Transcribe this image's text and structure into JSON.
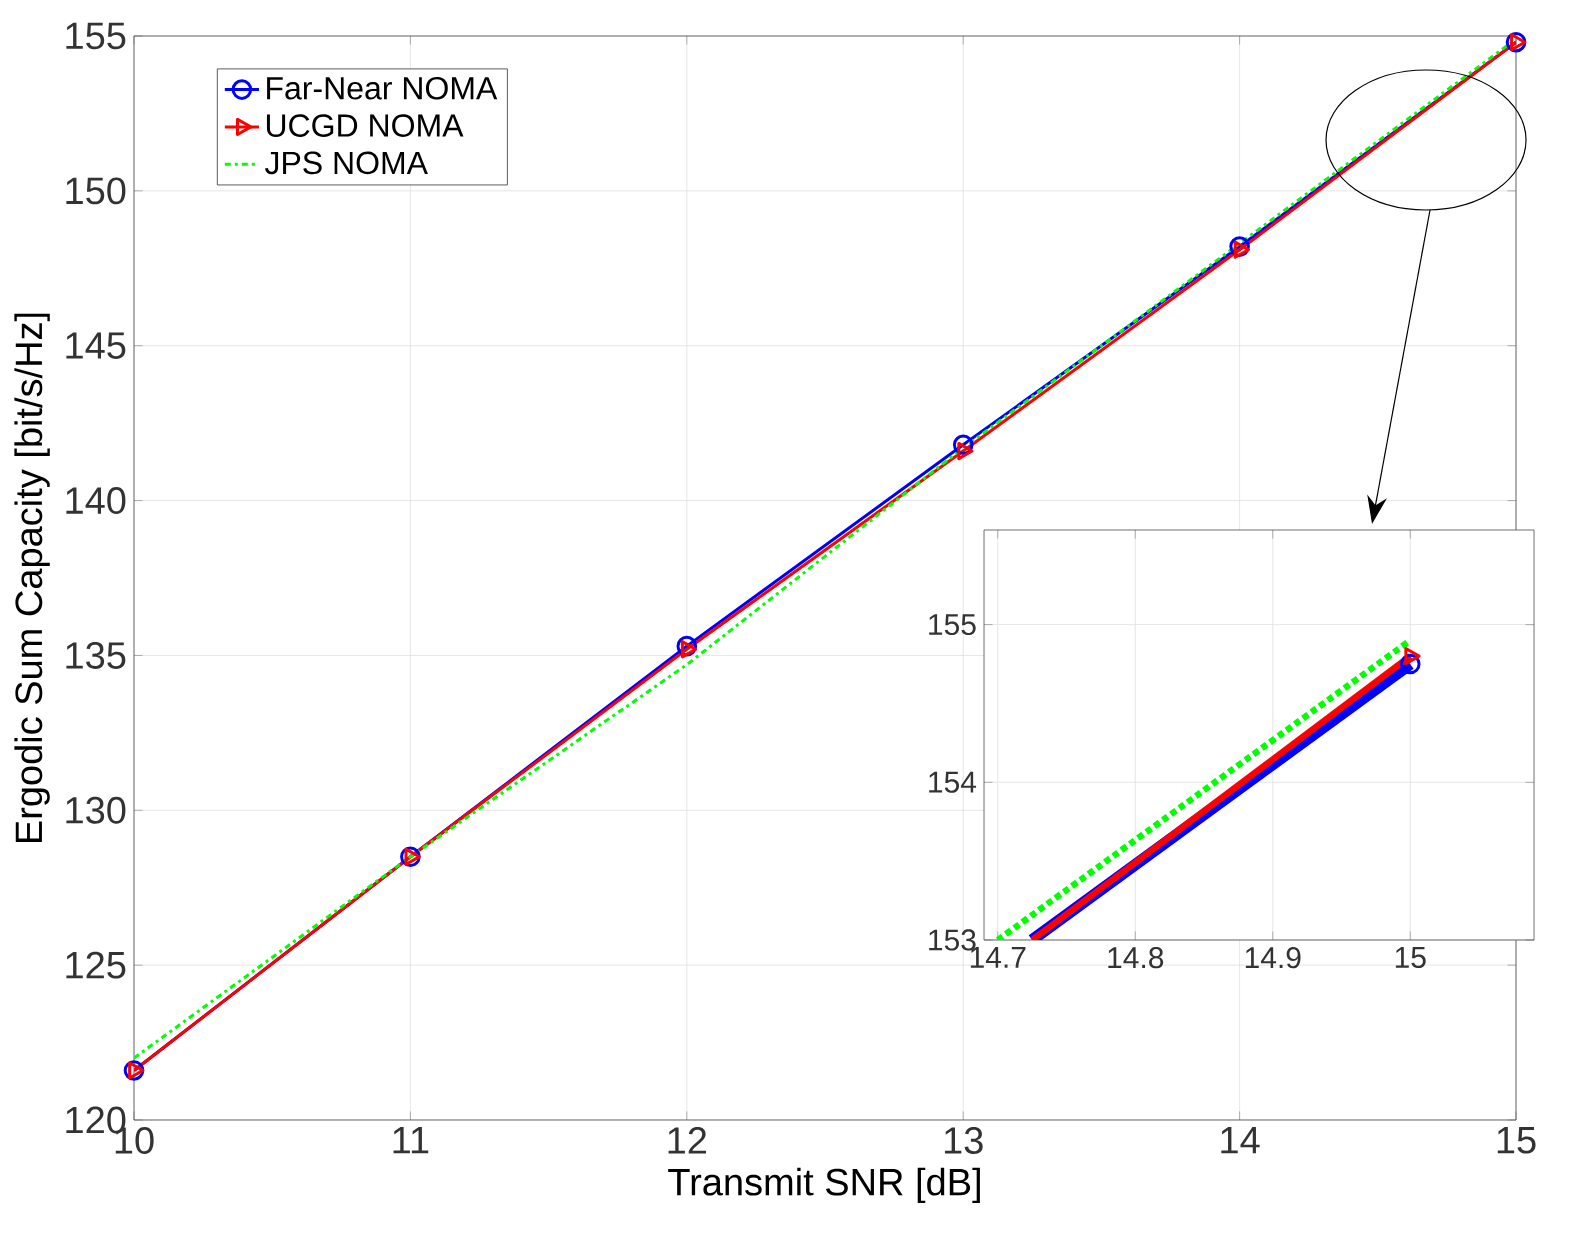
{
  "chart_data": [
    {
      "type": "line",
      "xlabel": "Transmit SNR [dB]",
      "ylabel": "Ergodic Sum Capacity [bit/s/Hz]",
      "x": [
        10,
        11,
        12,
        13,
        14,
        15
      ],
      "xlim": [
        10,
        15
      ],
      "ylim": [
        120,
        155
      ],
      "xticks": [
        10,
        11,
        12,
        13,
        14,
        15
      ],
      "yticks": [
        120,
        125,
        130,
        135,
        140,
        145,
        150,
        155
      ],
      "grid": true,
      "legend": "top left",
      "series": [
        {
          "name": "Far-Near NOMA",
          "color": "#0000ff",
          "marker": "circle",
          "line_style": "solid",
          "values": [
            121.6,
            128.5,
            135.3,
            141.8,
            148.2,
            154.8
          ]
        },
        {
          "name": "UCGD NOMA",
          "color": "#ff0000",
          "marker": "triangle",
          "line_style": "solid",
          "values": [
            121.6,
            128.5,
            135.2,
            141.6,
            148.1,
            154.8
          ]
        },
        {
          "name": "JPS NOMA",
          "color": "#00ff00",
          "marker": "none",
          "line_style": "dashdot",
          "values": [
            122.0,
            128.5,
            134.7,
            141.7,
            148.3,
            154.9
          ]
        }
      ]
    },
    {
      "type": "line",
      "xlim": [
        14.69,
        15.09
      ],
      "ylim": [
        153,
        155.6
      ],
      "xticks": [
        14.7,
        14.8,
        14.9,
        15
      ],
      "yticks": [
        153,
        154,
        155
      ],
      "grid": true,
      "series": [
        {
          "color": "#0000ff",
          "marker": "circle",
          "line_style": "solid",
          "x": [
            14.725,
            15
          ],
          "values": [
            153.0,
            154.75
          ]
        },
        {
          "color": "#ff0000",
          "marker": "triangle",
          "line_style": "solid",
          "x": [
            14.725,
            15
          ],
          "values": [
            153.0,
            154.8
          ]
        },
        {
          "color": "#00ff00",
          "marker": "none",
          "line_style": "dashdot",
          "x": [
            14.7,
            15
          ],
          "values": [
            153.0,
            154.9
          ]
        }
      ]
    }
  ]
}
